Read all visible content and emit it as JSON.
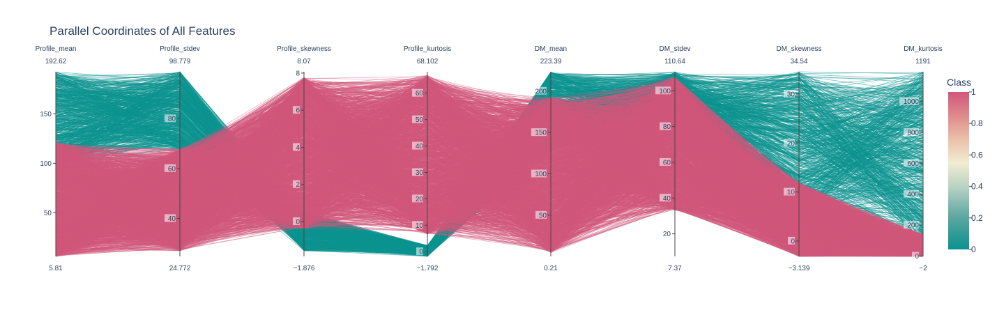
{
  "chart_data": {
    "type": "parallel_coordinates",
    "title": "Parallel Coordinates of All Features",
    "dimensions": [
      {
        "name": "Profile_mean",
        "range": [
          5.81,
          192.62
        ],
        "range_labels": [
          "5.81",
          "192.62"
        ],
        "ticks": [
          50,
          100,
          150
        ]
      },
      {
        "name": "Profile_stdev",
        "range": [
          24.772,
          98.779
        ],
        "range_labels": [
          "24.772",
          "98.779"
        ],
        "ticks": [
          40,
          60,
          80
        ]
      },
      {
        "name": "Profile_skewness",
        "range": [
          -1.876,
          8.07
        ],
        "range_labels": [
          "−1.876",
          "8.07"
        ],
        "ticks": [
          0,
          2,
          4,
          6,
          8
        ]
      },
      {
        "name": "Profile_kurtosis",
        "range": [
          -1.792,
          68.102
        ],
        "range_labels": [
          "−1.792",
          "68.102"
        ],
        "ticks": [
          0,
          10,
          20,
          30,
          40,
          50,
          60
        ]
      },
      {
        "name": "DM_mean",
        "range": [
          0.21,
          223.39
        ],
        "range_labels": [
          "0.21",
          "223.39"
        ],
        "ticks": [
          50,
          100,
          150,
          200
        ]
      },
      {
        "name": "DM_stdev",
        "range": [
          7.37,
          110.64
        ],
        "range_labels": [
          "7.37",
          "110.64"
        ],
        "ticks": [
          20,
          40,
          60,
          80,
          100
        ]
      },
      {
        "name": "DM_skewness",
        "range": [
          -3.139,
          34.54
        ],
        "range_labels": [
          "−3.139",
          "34.54"
        ],
        "ticks": [
          0,
          10,
          20,
          30
        ]
      },
      {
        "name": "DM_kurtosis",
        "range": [
          -2,
          1191
        ],
        "range_labels": [
          "−2",
          "1191"
        ],
        "ticks": [
          0,
          200,
          400,
          600,
          800,
          1000
        ]
      }
    ],
    "colorbar": {
      "title": "Class",
      "ticks": [
        "0",
        "0.2",
        "0.4",
        "0.6",
        "0.8",
        "1"
      ],
      "colorscale": [
        "#009B9E",
        "#42B7B9",
        "#A7D3D4",
        "#F1F1F1",
        "#E4C1D9",
        "#D691C1",
        "#C75DAB"
      ],
      "rendered_low": "#0a918f",
      "rendered_high": "#d1577c"
    },
    "line_color_class0": "#0d948f",
    "line_color_class1": "#d1577c"
  }
}
